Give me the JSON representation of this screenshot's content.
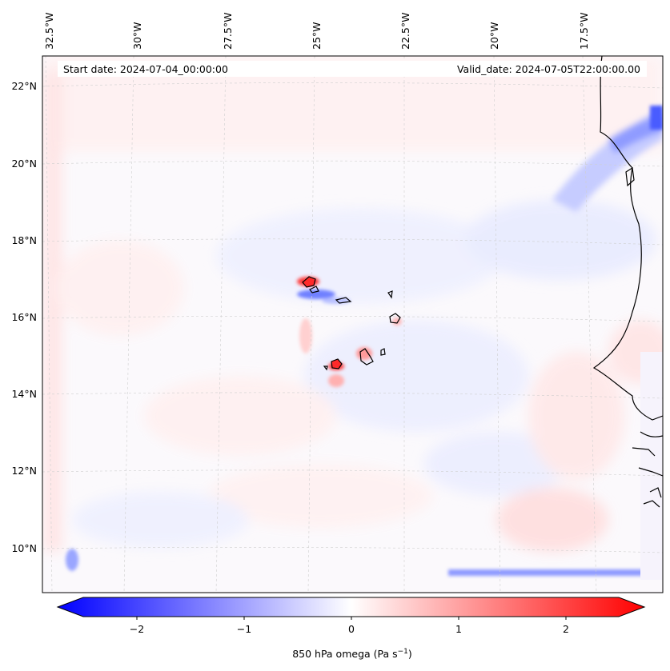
{
  "map": {
    "start_date": "Start date: 2024-07-04_00:00:00",
    "valid_date": "Valid_date: 2024-07-05T22:00:00.00",
    "longitude_labels": [
      "32.5°W",
      "30°W",
      "27.5°W",
      "25°W",
      "22.5°W",
      "20°W",
      "17.5°W"
    ],
    "latitude_labels": [
      "22°N",
      "20°N",
      "18°N",
      "16°N",
      "14°N",
      "12°N",
      "10°N"
    ],
    "longitudes": [
      -32.5,
      -30,
      -27.5,
      -25,
      -22.5,
      -20,
      -17.5
    ],
    "latitudes": [
      22,
      20,
      18,
      16,
      14,
      12,
      10
    ],
    "variable": "850 hPa omega"
  },
  "colorbar": {
    "label": "850 hPa omega (Pa s",
    "unit_exponent": "−1",
    "label_suffix": ")",
    "ticks": [
      "−2",
      "−1",
      "0",
      "1",
      "2"
    ],
    "tick_values": [
      -2,
      -1,
      0,
      1,
      2
    ],
    "vmin": -2.6,
    "vmax": 2.6,
    "colors": {
      "low": "#0000ff",
      "mid": "#ffffff",
      "high": "#ff0000"
    }
  },
  "colors": {
    "coastline": "#000000",
    "gridline": "#c8c8c8"
  }
}
